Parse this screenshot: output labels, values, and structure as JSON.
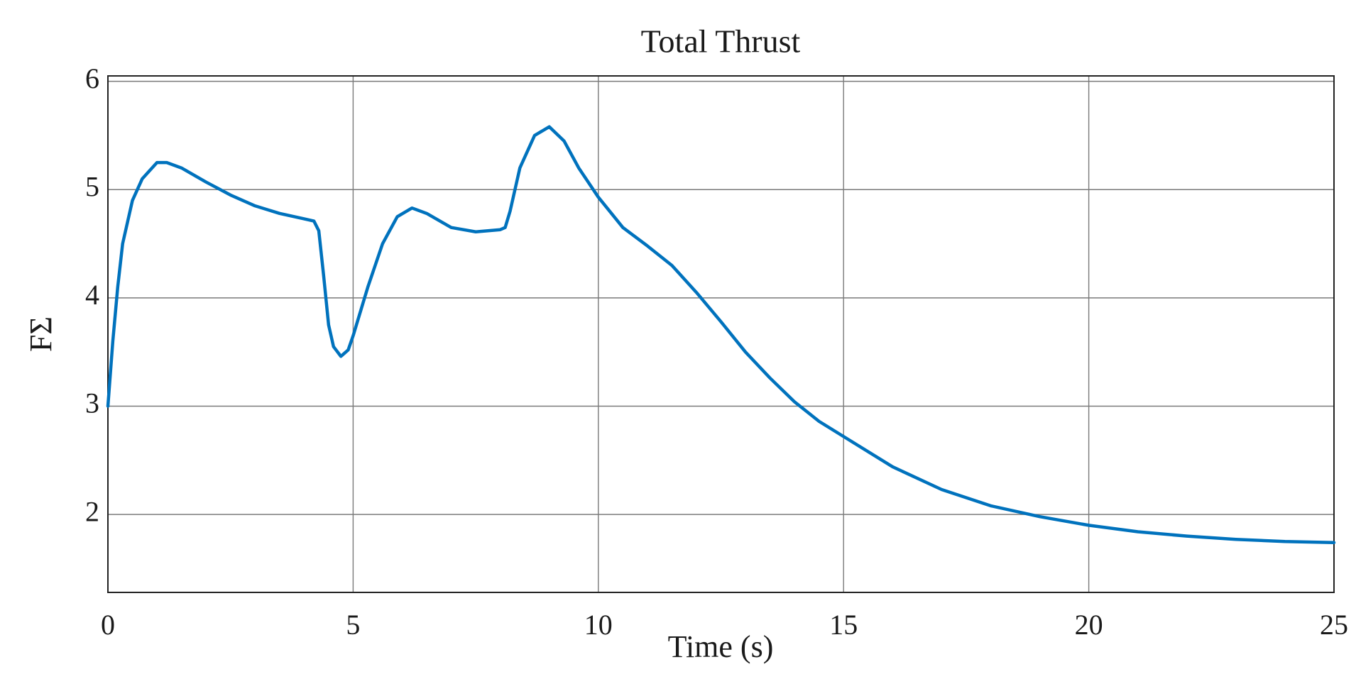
{
  "chart_data": {
    "type": "line",
    "title": "Total Thrust",
    "x_label": "Time (s)",
    "y_label": "FΣ",
    "xlim": [
      0,
      25
    ],
    "ylim": [
      1.28,
      6.05
    ],
    "xticks": [
      0,
      5,
      10,
      15,
      20,
      25
    ],
    "yticks": [
      2,
      3,
      4,
      5,
      6
    ],
    "grid": true,
    "x": [
      0,
      0.1,
      0.2,
      0.3,
      0.5,
      0.7,
      1.0,
      1.2,
      1.5,
      2.0,
      2.5,
      3.0,
      3.5,
      4.0,
      4.2,
      4.3,
      4.4,
      4.5,
      4.6,
      4.75,
      4.9,
      5.0,
      5.3,
      5.6,
      5.9,
      6.2,
      6.5,
      7.0,
      7.5,
      8.0,
      8.1,
      8.2,
      8.4,
      8.7,
      9.0,
      9.3,
      9.6,
      10.0,
      10.5,
      11.0,
      11.5,
      12.0,
      12.5,
      13.0,
      13.5,
      14.0,
      14.5,
      15.0,
      16.0,
      17.0,
      18.0,
      19.0,
      20.0,
      21.0,
      22.0,
      23.0,
      24.0,
      25.0
    ],
    "series": [
      {
        "name": "Total Thrust",
        "color": "#0072bd",
        "values": [
          3.0,
          3.6,
          4.1,
          4.5,
          4.9,
          5.1,
          5.25,
          5.25,
          5.2,
          5.07,
          4.95,
          4.85,
          4.78,
          4.73,
          4.71,
          4.62,
          4.2,
          3.75,
          3.55,
          3.46,
          3.52,
          3.65,
          4.1,
          4.5,
          4.75,
          4.83,
          4.78,
          4.65,
          4.61,
          4.63,
          4.65,
          4.8,
          5.2,
          5.5,
          5.58,
          5.45,
          5.2,
          4.93,
          4.65,
          4.48,
          4.3,
          4.05,
          3.78,
          3.5,
          3.26,
          3.04,
          2.86,
          2.72,
          2.44,
          2.23,
          2.08,
          1.98,
          1.9,
          1.84,
          1.8,
          1.77,
          1.75,
          1.74
        ]
      }
    ]
  }
}
